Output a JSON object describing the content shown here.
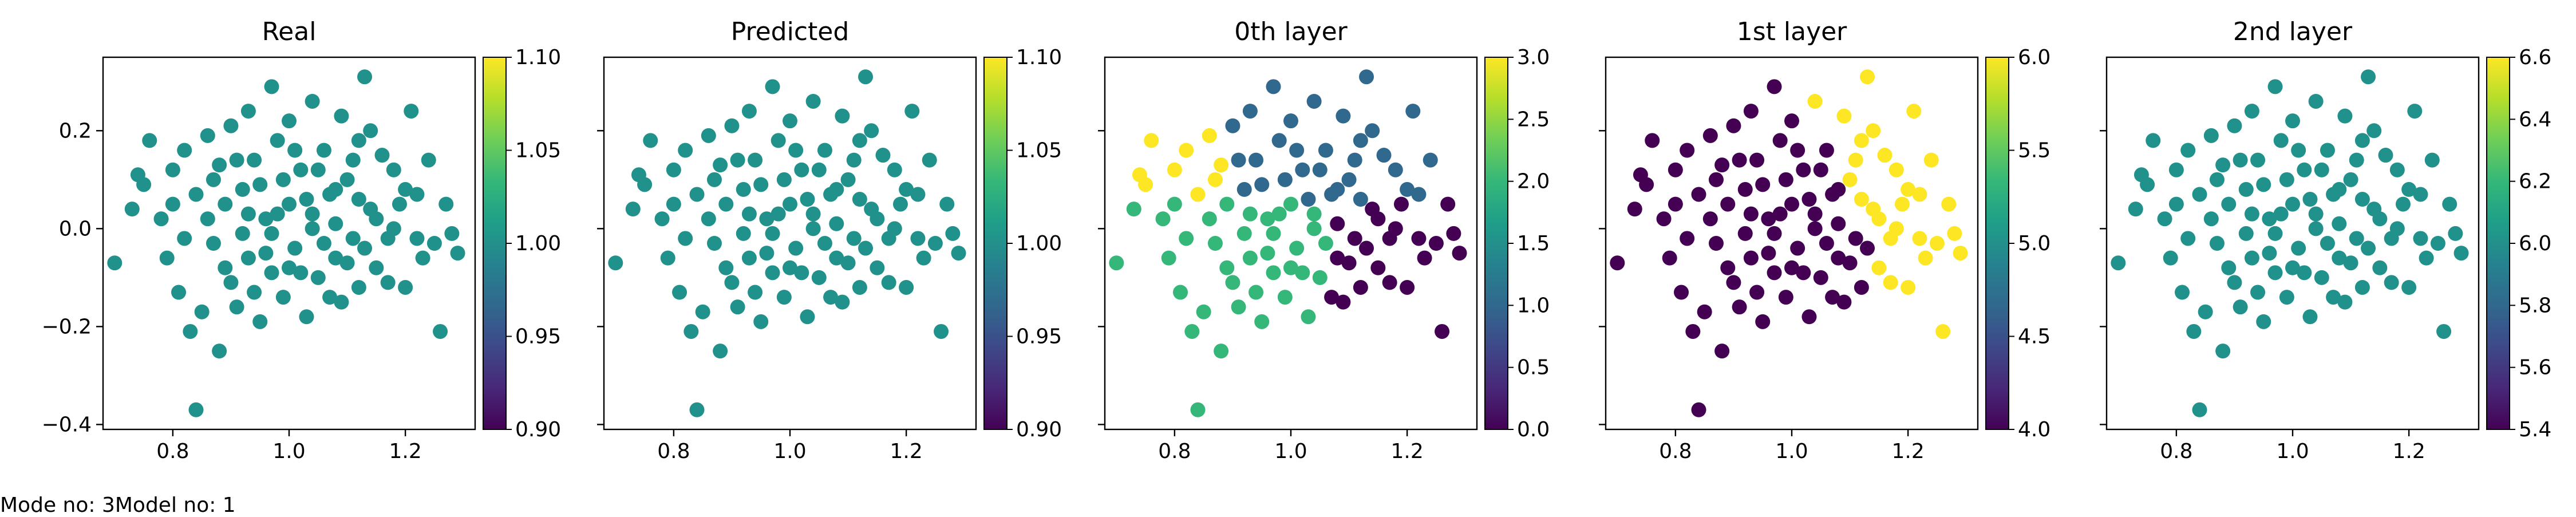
{
  "footer": {
    "left": "Mode no: 3",
    "right": "Model no: 1"
  },
  "chart_data": [
    {
      "type": "scatter",
      "title": "Real",
      "xlabel": "",
      "ylabel": "",
      "xlim": [
        0.68,
        1.32
      ],
      "ylim": [
        -0.41,
        0.35
      ],
      "xticks": [
        "0.8",
        "1.0",
        "1.2"
      ],
      "yticks": [
        "−0.4",
        "−0.2",
        "0.0",
        "0.2"
      ],
      "colorbar": {
        "range": [
          0.9,
          1.1
        ],
        "ticks": [
          "0.90",
          "0.95",
          "1.00",
          "1.05",
          "1.10"
        ]
      },
      "point_color": "#21918c",
      "point_value": 1.0
    },
    {
      "type": "scatter",
      "title": "Predicted",
      "xlabel": "",
      "ylabel": "",
      "xlim": [
        0.68,
        1.32
      ],
      "ylim": [
        -0.41,
        0.35
      ],
      "xticks": [
        "0.8",
        "1.0",
        "1.2"
      ],
      "yticks": [],
      "colorbar": {
        "range": [
          0.9,
          1.1
        ],
        "ticks": [
          "0.90",
          "0.95",
          "1.00",
          "1.05",
          "1.10"
        ]
      },
      "point_color": "#21918c",
      "point_value": 1.0
    },
    {
      "type": "scatter",
      "title": "0th layer",
      "xlabel": "",
      "ylabel": "",
      "xlim": [
        0.68,
        1.32
      ],
      "ylim": [
        -0.41,
        0.35
      ],
      "xticks": [
        "0.8",
        "1.0",
        "1.2"
      ],
      "yticks": [],
      "colorbar": {
        "range": [
          0.0,
          3.0
        ],
        "ticks": [
          "0.0",
          "0.5",
          "1.0",
          "1.5",
          "2.0",
          "2.5",
          "3.0"
        ]
      },
      "clusters": [
        {
          "value": 0,
          "color": "#440154"
        },
        {
          "value": 1,
          "color": "#31688e"
        },
        {
          "value": 2,
          "color": "#35b779"
        },
        {
          "value": 3,
          "color": "#fde725"
        }
      ]
    },
    {
      "type": "scatter",
      "title": "1st layer",
      "xlabel": "",
      "ylabel": "",
      "xlim": [
        0.68,
        1.32
      ],
      "ylim": [
        -0.41,
        0.35
      ],
      "xticks": [
        "0.8",
        "1.0",
        "1.2"
      ],
      "yticks": [],
      "colorbar": {
        "range": [
          4.0,
          6.0
        ],
        "ticks": [
          "4.0",
          "4.5",
          "5.0",
          "5.5",
          "6.0"
        ]
      },
      "clusters": [
        {
          "value": 4,
          "color": "#440154"
        },
        {
          "value": 6,
          "color": "#fde725"
        }
      ]
    },
    {
      "type": "scatter",
      "title": "2nd layer",
      "xlabel": "",
      "ylabel": "",
      "xlim": [
        0.68,
        1.32
      ],
      "ylim": [
        -0.41,
        0.35
      ],
      "xticks": [
        "0.8",
        "1.0",
        "1.2"
      ],
      "yticks": [],
      "colorbar": {
        "range": [
          5.4,
          6.6
        ],
        "ticks": [
          "5.4",
          "5.6",
          "5.8",
          "6.0",
          "6.2",
          "6.4",
          "6.6"
        ]
      },
      "point_color": "#21918c",
      "point_value": 6.0
    }
  ],
  "points": [
    [
      0.7,
      -0.07
    ],
    [
      0.73,
      0.04
    ],
    [
      0.74,
      0.11
    ],
    [
      0.76,
      0.18
    ],
    [
      0.75,
      0.09
    ],
    [
      0.78,
      0.02
    ],
    [
      0.79,
      -0.06
    ],
    [
      0.8,
      0.12
    ],
    [
      0.81,
      -0.13
    ],
    [
      0.82,
      0.16
    ],
    [
      0.83,
      -0.21
    ],
    [
      0.84,
      -0.37
    ],
    [
      0.84,
      0.07
    ],
    [
      0.85,
      -0.17
    ],
    [
      0.86,
      0.19
    ],
    [
      0.87,
      -0.03
    ],
    [
      0.88,
      -0.25
    ],
    [
      0.88,
      0.13
    ],
    [
      0.89,
      0.05
    ],
    [
      0.9,
      -0.11
    ],
    [
      0.9,
      0.21
    ],
    [
      0.91,
      -0.16
    ],
    [
      0.92,
      0.08
    ],
    [
      0.93,
      -0.06
    ],
    [
      0.93,
      0.24
    ],
    [
      0.94,
      0.14
    ],
    [
      0.95,
      -0.19
    ],
    [
      0.96,
      0.02
    ],
    [
      0.97,
      0.29
    ],
    [
      0.97,
      -0.09
    ],
    [
      0.98,
      0.18
    ],
    [
      0.99,
      -0.14
    ],
    [
      1.0,
      0.05
    ],
    [
      1.0,
      0.22
    ],
    [
      1.01,
      -0.04
    ],
    [
      1.02,
      0.12
    ],
    [
      1.03,
      -0.18
    ],
    [
      1.04,
      0.26
    ],
    [
      1.04,
      0.0
    ],
    [
      1.05,
      -0.1
    ],
    [
      1.06,
      0.16
    ],
    [
      1.07,
      0.07
    ],
    [
      1.08,
      -0.06
    ],
    [
      1.09,
      -0.15
    ],
    [
      1.09,
      0.23
    ],
    [
      1.1,
      0.1
    ],
    [
      1.11,
      -0.02
    ],
    [
      1.12,
      0.18
    ],
    [
      1.12,
      -0.12
    ],
    [
      1.13,
      0.31
    ],
    [
      1.14,
      0.04
    ],
    [
      1.15,
      -0.08
    ],
    [
      1.16,
      0.15
    ],
    [
      1.17,
      -0.02
    ],
    [
      1.18,
      0.12
    ],
    [
      1.19,
      0.05
    ],
    [
      1.2,
      -0.12
    ],
    [
      1.21,
      0.24
    ],
    [
      1.22,
      0.07
    ],
    [
      1.23,
      -0.06
    ],
    [
      1.24,
      0.14
    ],
    [
      1.25,
      -0.03
    ],
    [
      1.26,
      -0.21
    ],
    [
      1.27,
      0.05
    ],
    [
      1.28,
      -0.01
    ],
    [
      1.29,
      -0.05
    ],
    [
      0.8,
      0.05
    ],
    [
      0.82,
      -0.02
    ],
    [
      0.86,
      0.02
    ],
    [
      0.87,
      0.1
    ],
    [
      0.89,
      -0.08
    ],
    [
      0.91,
      0.14
    ],
    [
      0.92,
      -0.01
    ],
    [
      0.94,
      -0.13
    ],
    [
      0.95,
      0.09
    ],
    [
      0.96,
      -0.05
    ],
    [
      0.98,
      0.03
    ],
    [
      0.99,
      0.1
    ],
    [
      1.01,
      0.16
    ],
    [
      1.02,
      -0.09
    ],
    [
      1.03,
      0.06
    ],
    [
      1.05,
      0.12
    ],
    [
      1.06,
      -0.03
    ],
    [
      1.07,
      -0.14
    ],
    [
      1.08,
      0.08
    ],
    [
      1.1,
      -0.07
    ],
    [
      1.11,
      0.14
    ],
    [
      1.13,
      -0.04
    ],
    [
      1.14,
      0.2
    ],
    [
      1.15,
      0.02
    ],
    [
      1.17,
      -0.11
    ],
    [
      1.18,
      0.0
    ],
    [
      1.2,
      0.08
    ],
    [
      1.22,
      -0.02
    ],
    [
      0.97,
      -0.01
    ],
    [
      1.0,
      -0.08
    ],
    [
      1.04,
      0.03
    ],
    [
      0.93,
      0.03
    ],
    [
      1.08,
      0.01
    ],
    [
      1.12,
      0.06
    ]
  ]
}
